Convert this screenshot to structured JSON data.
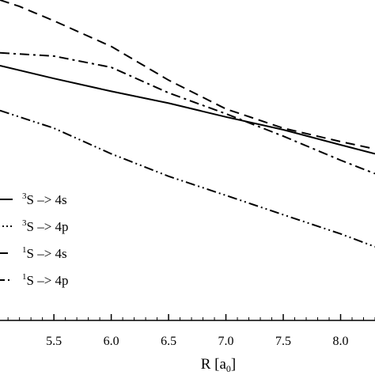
{
  "chart_data": {
    "type": "line",
    "xlabel": "R [a",
    "xlabel_sub": "0",
    "xlabel_close": "]",
    "x_ticks": [
      5.5,
      6.0,
      6.5,
      7.0,
      7.5,
      8.0
    ],
    "x_tick_labels": [
      "5.5",
      "6.0",
      "6.5",
      "7.0",
      "7.5",
      "8.0"
    ],
    "xlim": [
      5.03,
      8.3
    ],
    "ylim": [
      0,
      1
    ],
    "grid": false,
    "legend_position": "lower-left",
    "series": [
      {
        "name": "3S -> 4s",
        "name_sup": "3",
        "name_text": "S –> 4s",
        "style": "solid",
        "x": [
          5.03,
          5.5,
          6.0,
          6.5,
          7.0,
          7.5,
          8.0,
          8.3
        ],
        "y": [
          0.795,
          0.755,
          0.715,
          0.678,
          0.635,
          0.595,
          0.548,
          0.52
        ]
      },
      {
        "name": "3S -> 4p",
        "name_sup": "3",
        "name_text": "S –> 4p",
        "style": "dash-dot-dot",
        "x": [
          5.03,
          5.5,
          6.0,
          6.5,
          7.0,
          7.5,
          8.0,
          8.3
        ],
        "y": [
          0.655,
          0.6,
          0.52,
          0.45,
          0.39,
          0.33,
          0.27,
          0.23
        ]
      },
      {
        "name": "1S -> 4s",
        "name_sup": "1",
        "name_text": "S –> 4s",
        "style": "dashed",
        "x": [
          5.03,
          5.2,
          5.5,
          6.0,
          6.5,
          7.0,
          7.5,
          8.0,
          8.3
        ],
        "y": [
          1.0,
          0.98,
          0.935,
          0.855,
          0.75,
          0.66,
          0.6,
          0.558,
          0.535
        ]
      },
      {
        "name": "1S -> 4p",
        "name_sup": "1",
        "name_text": "S –> 4p",
        "style": "dash-dot",
        "x": [
          5.03,
          5.5,
          6.0,
          6.5,
          7.0,
          7.5,
          8.0,
          8.3
        ],
        "y": [
          0.835,
          0.825,
          0.79,
          0.71,
          0.645,
          0.575,
          0.5,
          0.458
        ]
      }
    ]
  }
}
